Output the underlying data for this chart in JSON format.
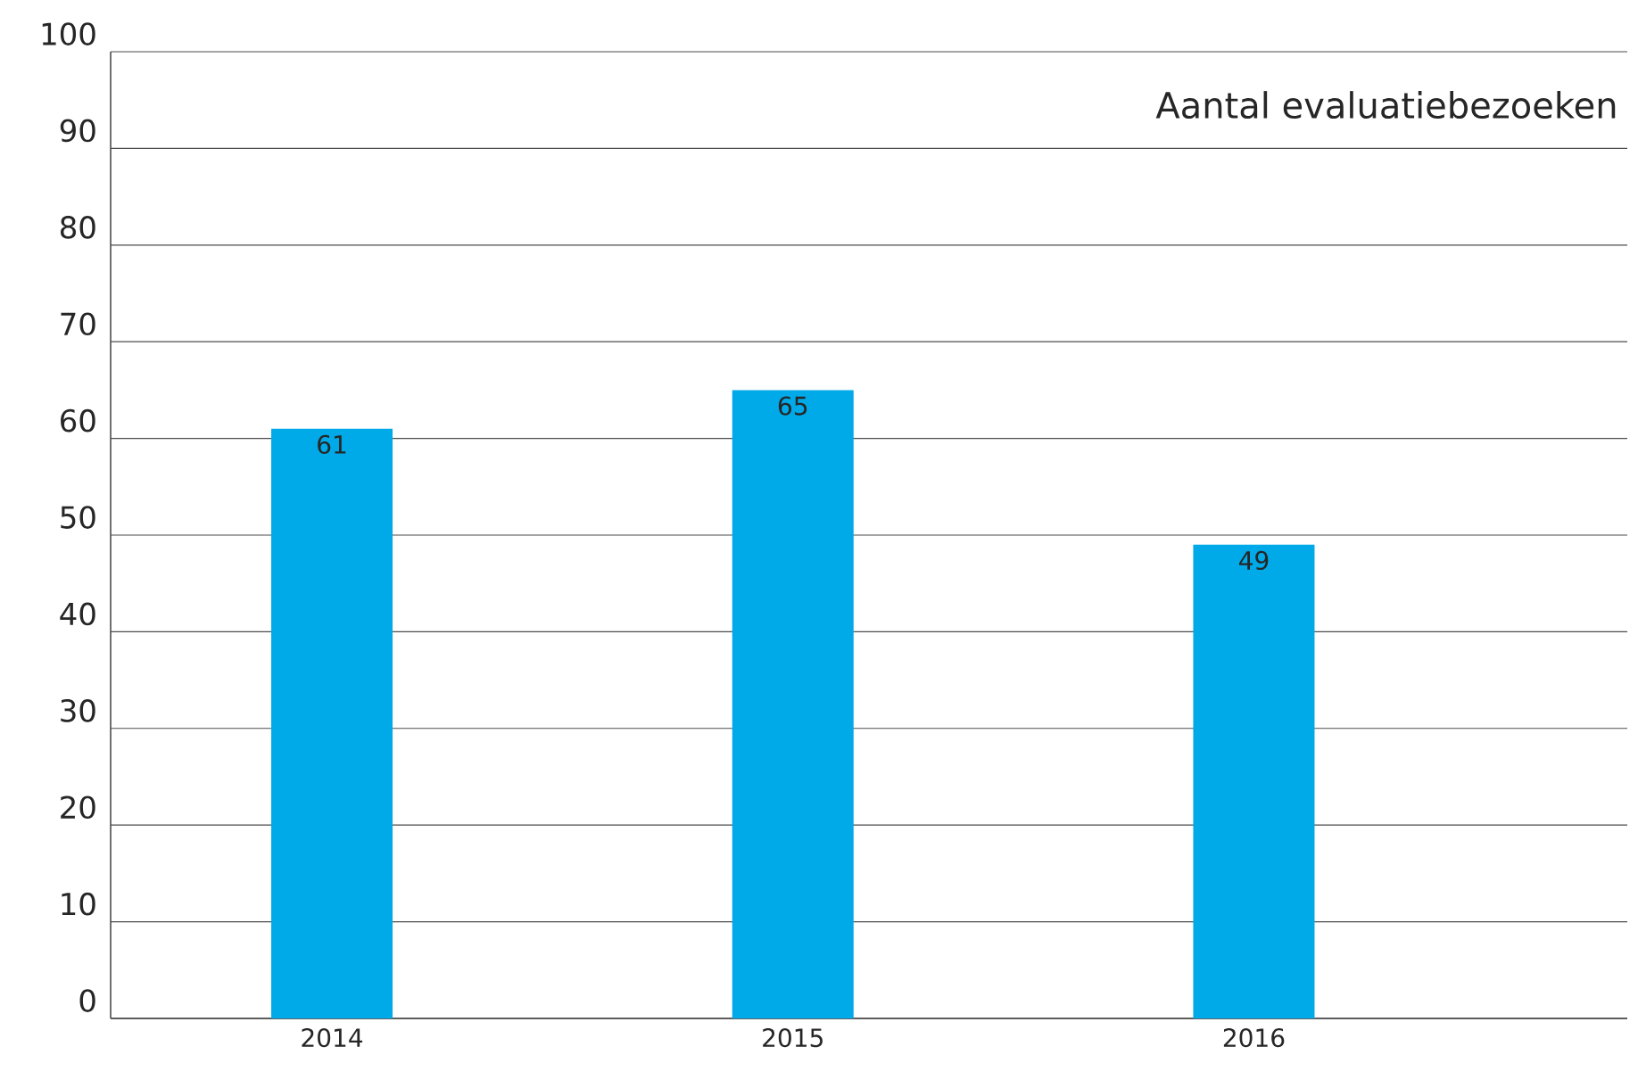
{
  "chart_data": {
    "type": "bar",
    "title": "Aantal evaluatiebezoeken",
    "categories": [
      "2014",
      "2015",
      "2016"
    ],
    "values": [
      61,
      65,
      49
    ],
    "value_labels": [
      "61",
      "65",
      "49"
    ],
    "color": "#00a9e8",
    "ylim": [
      0,
      100
    ],
    "yticks": [
      0,
      10,
      20,
      30,
      40,
      50,
      60,
      70,
      80,
      90,
      100
    ],
    "grid": "y"
  }
}
